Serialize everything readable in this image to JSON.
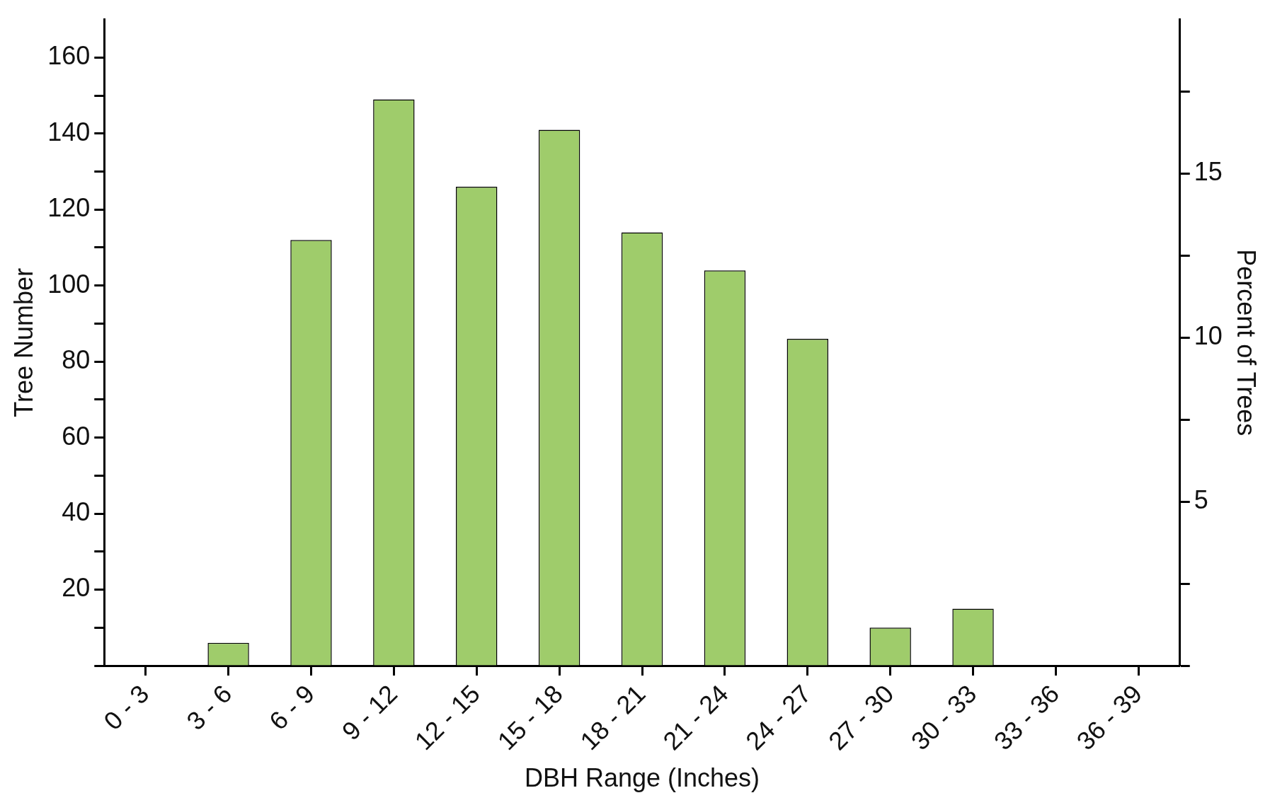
{
  "chart_data": {
    "type": "bar",
    "xlabel": "DBH Range (Inches)",
    "ylabel": "Tree Number",
    "y2label": "Percent of Trees",
    "categories": [
      "0 - 3",
      "3 - 6",
      "6 - 9",
      "9 - 12",
      "12 - 15",
      "15 - 18",
      "18 - 21",
      "21 - 24",
      "24 - 27",
      "27 - 30",
      "30 - 33",
      "33 - 36",
      "36 - 39"
    ],
    "values": [
      0,
      6,
      112,
      149,
      126,
      141,
      114,
      104,
      86,
      10,
      15,
      0,
      0
    ],
    "color": "#9fcc6b",
    "ylim": [
      0,
      170
    ],
    "yticks": [
      {
        "value": 0,
        "label": null
      },
      {
        "value": 10,
        "label": null
      },
      20,
      {
        "value": 30,
        "label": null
      },
      40,
      {
        "value": 50,
        "label": null
      },
      60,
      {
        "value": 70,
        "label": null
      },
      80,
      {
        "value": 90,
        "label": null
      },
      100,
      {
        "value": 110,
        "label": null
      },
      120,
      {
        "value": 130,
        "label": null
      },
      140,
      {
        "value": 150,
        "label": null
      },
      160
    ],
    "y2lim": [
      0,
      19.7
    ],
    "y2ticks": [
      {
        "value": 0,
        "label": null
      },
      {
        "value": 2.5,
        "label": null
      },
      5,
      {
        "value": 7.5,
        "label": null
      },
      10,
      {
        "value": 12.5,
        "label": null
      },
      15,
      {
        "value": 17.5,
        "label": null
      }
    ],
    "grid": false,
    "legend": false
  }
}
